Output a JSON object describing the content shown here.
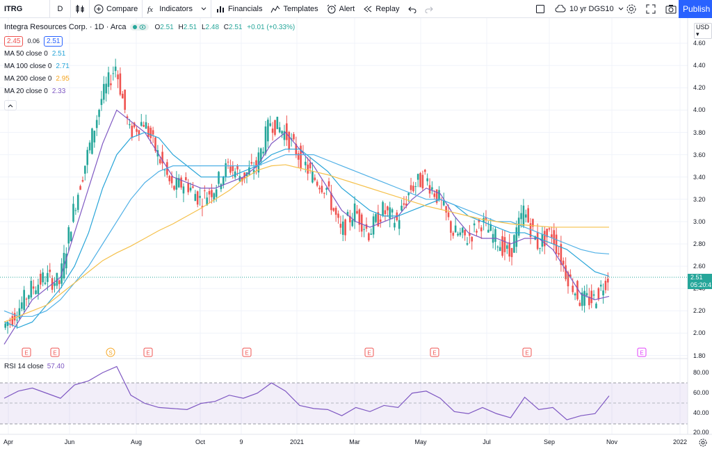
{
  "toolbar": {
    "symbol": "ITRG",
    "interval": "D",
    "compare_label": "Compare",
    "indicators_label": "Indicators",
    "financials_label": "Financials",
    "templates_label": "Templates",
    "alert_label": "Alert",
    "replay_label": "Replay",
    "compare_symbol": "10 yr DGS10",
    "publish_label": "Publish"
  },
  "legend": {
    "title": "Integra Resources Corp. · 1D · Arca",
    "o_label": "O",
    "o": "2.51",
    "h_label": "H",
    "h": "2.51",
    "l_label": "L",
    "l": "2.48",
    "c_label": "C",
    "c": "2.51",
    "change": "+0.01 (+0.33%)",
    "bid": "2.45",
    "spread": "0.06",
    "ask": "2.51",
    "ma": [
      {
        "label": "MA 50 close 0",
        "value": "2.51",
        "color": "#26a4d8"
      },
      {
        "label": "MA 100 close 0",
        "value": "2.71",
        "color": "#26a4d8"
      },
      {
        "label": "MA 200 close 0",
        "value": "2.95",
        "color": "#f5a623"
      },
      {
        "label": "MA 20 close 0",
        "value": "2.33",
        "color": "#7e57c2"
      }
    ]
  },
  "rsi": {
    "label": "RSI 14 close",
    "value": "57.40",
    "ticks": [
      "80.00",
      "60.00",
      "40.00",
      "20.00"
    ]
  },
  "price_axis": {
    "currency": "USD",
    "ticks": [
      "4.60",
      "4.40",
      "4.20",
      "4.00",
      "3.80",
      "3.60",
      "3.40",
      "3.20",
      "3.00",
      "2.80",
      "2.60",
      "2.40",
      "2.20",
      "2.00",
      "1.80"
    ],
    "last_price": "2.51",
    "countdown": "05:20:4"
  },
  "time_axis": [
    "Apr",
    "Jun",
    "Aug",
    "Oct",
    "9",
    "2021",
    "Mar",
    "May",
    "Jul",
    "Sep",
    "Nov",
    "2022"
  ],
  "events": [
    "E",
    "E",
    "S",
    "E",
    "E",
    "E",
    "E",
    "E",
    "E"
  ],
  "colors": {
    "up": "#26a69a",
    "down": "#ef5350",
    "ma50": "#26a4d8",
    "ma100": "#4fb0e6",
    "ma200": "#f5c04a",
    "ma20": "#7e57c2",
    "rsi": "#7e57c2"
  },
  "chart_data": {
    "type": "line",
    "title": "",
    "ylim": [
      1.8,
      4.7
    ],
    "series": [
      {
        "name": "Price",
        "values": [
          2.05,
          2.2,
          2.4,
          2.5,
          2.45,
          3.1,
          3.6,
          4.1,
          4.4,
          3.8,
          3.9,
          3.6,
          3.3,
          3.35,
          3.2,
          3.3,
          3.5,
          3.4,
          3.5,
          3.9,
          3.8,
          3.6,
          3.4,
          3.3,
          2.9,
          3.1,
          2.9,
          3.1,
          3.0,
          3.3,
          3.4,
          3.2,
          2.9,
          2.85,
          3.0,
          2.85,
          2.7,
          3.1,
          2.8,
          2.9,
          2.55,
          2.3,
          2.3,
          2.51
        ]
      },
      {
        "name": "MA 20",
        "values": [
          1.9,
          2.1,
          2.3,
          2.4,
          2.5,
          2.9,
          3.3,
          3.7,
          4.0,
          3.9,
          3.8,
          3.6,
          3.4,
          3.35,
          3.3,
          3.3,
          3.35,
          3.4,
          3.5,
          3.7,
          3.8,
          3.65,
          3.5,
          3.3,
          3.1,
          3.0,
          2.95,
          3.0,
          3.05,
          3.2,
          3.3,
          3.25,
          3.05,
          2.9,
          2.85,
          2.85,
          2.8,
          2.85,
          2.85,
          2.75,
          2.55,
          2.35,
          2.3,
          2.33
        ]
      },
      {
        "name": "MA 50",
        "values": [
          2.1,
          2.05,
          2.1,
          2.25,
          2.4,
          2.6,
          2.9,
          3.3,
          3.6,
          3.75,
          3.8,
          3.75,
          3.6,
          3.5,
          3.4,
          3.4,
          3.4,
          3.45,
          3.5,
          3.6,
          3.65,
          3.65,
          3.55,
          3.45,
          3.3,
          3.2,
          3.1,
          3.05,
          3.05,
          3.1,
          3.15,
          3.2,
          3.15,
          3.05,
          3.0,
          2.95,
          2.9,
          2.9,
          2.85,
          2.8,
          2.75,
          2.65,
          2.55,
          2.51
        ]
      },
      {
        "name": "MA 100",
        "values": [
          2.2,
          2.15,
          2.15,
          2.2,
          2.3,
          2.45,
          2.6,
          2.8,
          3.0,
          3.2,
          3.35,
          3.45,
          3.5,
          3.5,
          3.5,
          3.5,
          3.5,
          3.5,
          3.5,
          3.55,
          3.6,
          3.6,
          3.6,
          3.55,
          3.5,
          3.45,
          3.4,
          3.35,
          3.3,
          3.25,
          3.2,
          3.2,
          3.15,
          3.1,
          3.05,
          3.0,
          3.0,
          2.95,
          2.9,
          2.85,
          2.8,
          2.75,
          2.72,
          2.71
        ]
      },
      {
        "name": "MA 200",
        "values": [
          2.1,
          2.15,
          2.2,
          2.25,
          2.35,
          2.45,
          2.55,
          2.65,
          2.72,
          2.78,
          2.85,
          2.92,
          2.98,
          3.05,
          3.12,
          3.2,
          3.28,
          3.38,
          3.46,
          3.5,
          3.51,
          3.48,
          3.45,
          3.42,
          3.38,
          3.34,
          3.3,
          3.26,
          3.22,
          3.18,
          3.14,
          3.11,
          3.08,
          3.05,
          3.02,
          3.0,
          2.98,
          2.97,
          2.96,
          2.95,
          2.95,
          2.95,
          2.95,
          2.95
        ]
      },
      {
        "name": "RSI",
        "values": [
          55,
          62,
          65,
          60,
          55,
          68,
          72,
          80,
          86,
          58,
          50,
          46,
          45,
          44,
          50,
          52,
          58,
          55,
          60,
          70,
          62,
          48,
          45,
          44,
          38,
          46,
          42,
          48,
          46,
          60,
          62,
          55,
          42,
          40,
          46,
          40,
          36,
          56,
          44,
          46,
          34,
          38,
          40,
          57.4
        ]
      }
    ]
  }
}
